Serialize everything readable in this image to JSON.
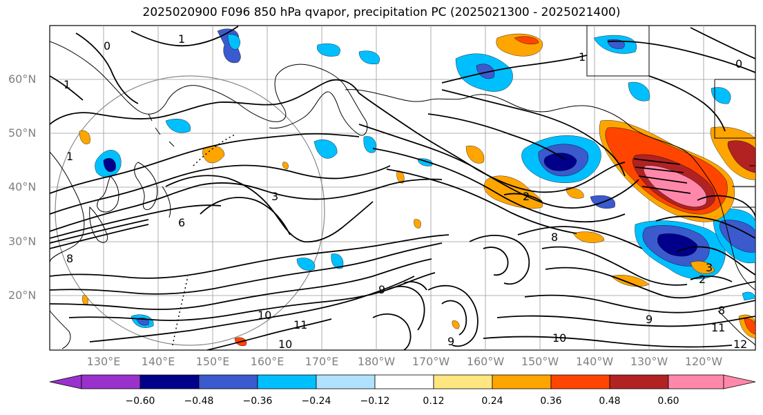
{
  "title": "2025020900 F096 850 hPa qvapor, precipitation PC (2025021300 - 2025021400)",
  "lat_labels": [
    "60°N",
    "50°N",
    "40°N",
    "30°N",
    "20°N"
  ],
  "lon_labels": [
    "130°E",
    "140°E",
    "150°E",
    "160°E",
    "170°E",
    "180°W",
    "170°W",
    "160°W",
    "150°W",
    "140°W",
    "130°W",
    "120°W"
  ],
  "contour_labels": [
    "0",
    "1",
    "1",
    "1",
    "0",
    "1",
    "2",
    "3",
    "6",
    "8",
    "9",
    "10",
    "10",
    "11",
    "8",
    "9",
    "8",
    "3",
    "2",
    "11",
    "12",
    "10",
    "9"
  ],
  "colorbar": {
    "ticks": [
      "−0.60",
      "−0.48",
      "−0.36",
      "−0.24",
      "−0.12",
      "0.12",
      "0.24",
      "0.36",
      "0.48",
      "0.60"
    ],
    "colors": [
      "#9932cc",
      "#00008b",
      "#3a5acd",
      "#00bfff",
      "#b0e2ff",
      "#ffffff",
      "#ffe680",
      "#ffa500",
      "#ff4500",
      "#b22222",
      "#ff88aa",
      "#ff88aa"
    ]
  },
  "colors": {
    "text": "#000000",
    "axis_label": "#808080",
    "grid": "#999999",
    "coast": "#000000"
  }
}
